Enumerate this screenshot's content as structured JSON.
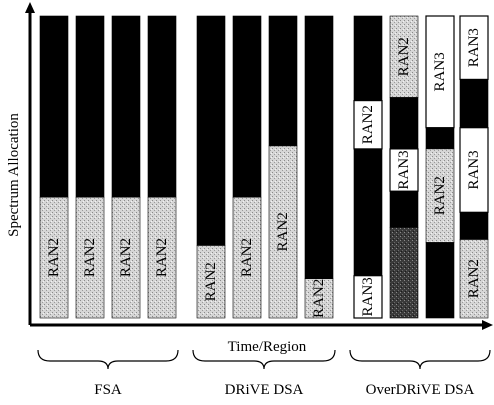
{
  "axes": {
    "y_label": "Spectrum Allocation",
    "x_label": "Time/Region"
  },
  "groups": [
    {
      "label": "FSA",
      "columns": [
        {
          "segments": [
            {
              "type": "black",
              "frac": 0.6
            },
            {
              "type": "gray",
              "frac": 0.4,
              "label": "RAN2"
            }
          ]
        },
        {
          "segments": [
            {
              "type": "black",
              "frac": 0.6
            },
            {
              "type": "gray",
              "frac": 0.4,
              "label": "RAN2"
            }
          ]
        },
        {
          "segments": [
            {
              "type": "black",
              "frac": 0.6
            },
            {
              "type": "gray",
              "frac": 0.4,
              "label": "RAN2"
            }
          ]
        },
        {
          "segments": [
            {
              "type": "black",
              "frac": 0.6
            },
            {
              "type": "gray",
              "frac": 0.4,
              "label": "RAN2"
            }
          ]
        }
      ]
    },
    {
      "label": "DRiVE DSA",
      "columns": [
        {
          "segments": [
            {
              "type": "black",
              "frac": 0.76
            },
            {
              "type": "gray",
              "frac": 0.24,
              "label": "RAN2"
            }
          ]
        },
        {
          "segments": [
            {
              "type": "black",
              "frac": 0.6
            },
            {
              "type": "gray",
              "frac": 0.4,
              "label": "RAN2"
            }
          ]
        },
        {
          "segments": [
            {
              "type": "black",
              "frac": 0.43
            },
            {
              "type": "gray",
              "frac": 0.57,
              "label": "RAN2"
            }
          ]
        },
        {
          "segments": [
            {
              "type": "black",
              "frac": 0.87
            },
            {
              "type": "gray",
              "frac": 0.13,
              "label": "RAN2"
            }
          ]
        }
      ]
    },
    {
      "label": "OverDRiVE DSA",
      "columns": [
        {
          "segments": [
            {
              "type": "black",
              "frac": 0.28
            },
            {
              "type": "white",
              "frac": 0.16,
              "label": "RAN2"
            },
            {
              "type": "black",
              "frac": 0.42
            },
            {
              "type": "white",
              "frac": 0.14,
              "label": "RAN3"
            }
          ]
        },
        {
          "segments": [
            {
              "type": "gray",
              "frac": 0.27,
              "label": "RAN2"
            },
            {
              "type": "black",
              "frac": 0.17
            },
            {
              "type": "white",
              "frac": 0.14,
              "label": "RAN3"
            },
            {
              "type": "black",
              "frac": 0.12
            },
            {
              "type": "dark",
              "frac": 0.3
            }
          ]
        },
        {
          "segments": [
            {
              "type": "white",
              "frac": 0.37,
              "label": "RAN3"
            },
            {
              "type": "black",
              "frac": 0.07
            },
            {
              "type": "gray",
              "frac": 0.31,
              "label": "RAN2"
            },
            {
              "type": "black",
              "frac": 0.25
            }
          ]
        },
        {
          "segments": [
            {
              "type": "white",
              "frac": 0.21,
              "label": "RAN3"
            },
            {
              "type": "black",
              "frac": 0.16
            },
            {
              "type": "white",
              "frac": 0.28,
              "label": "RAN3"
            },
            {
              "type": "black",
              "frac": 0.09
            },
            {
              "type": "gray",
              "frac": 0.26,
              "label": "RAN2"
            }
          ]
        }
      ]
    }
  ]
}
